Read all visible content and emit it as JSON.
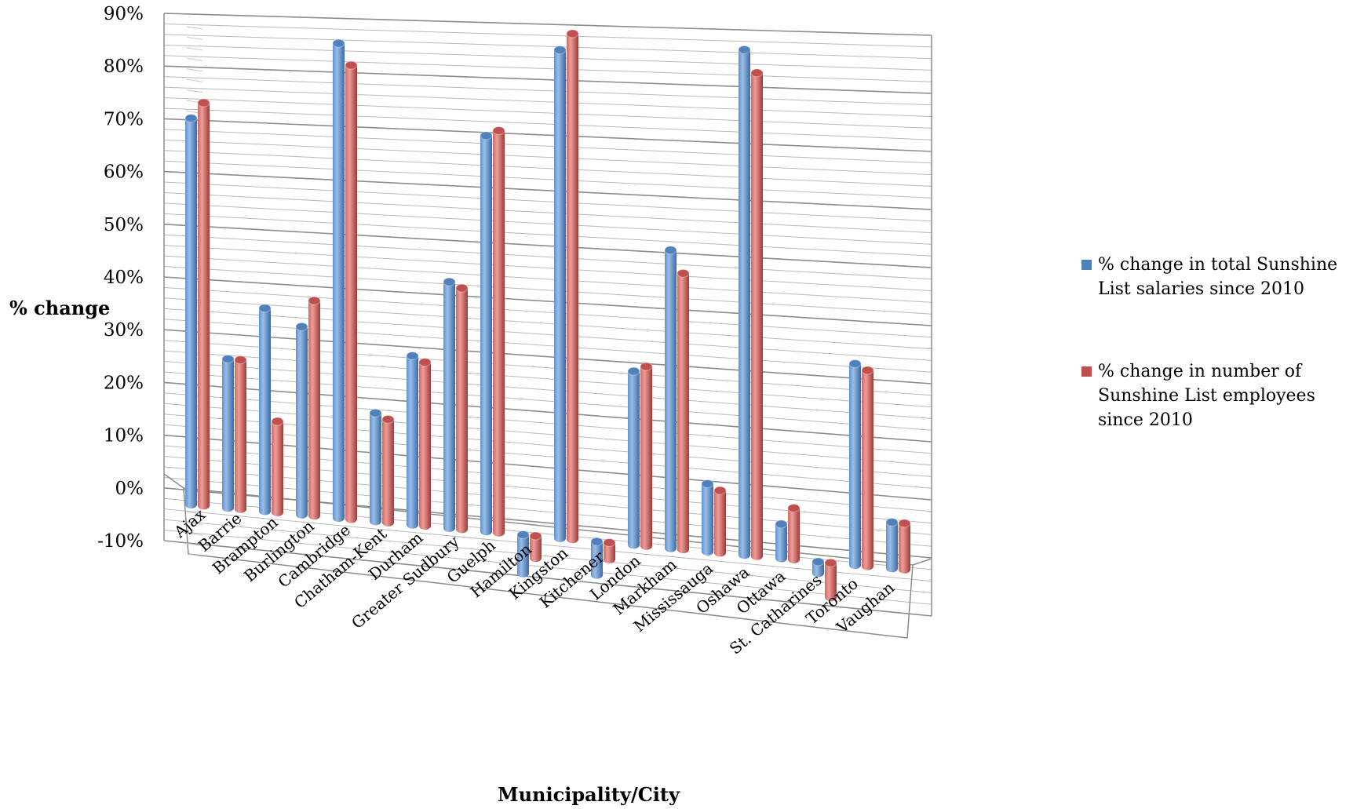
{
  "chart_data": {
    "type": "bar",
    "title": "",
    "xlabel": "Municipality/City",
    "ylabel": "% change",
    "ylim": [
      -10,
      90
    ],
    "y_ticks": [
      "-10%",
      "0%",
      "10%",
      "20%",
      "30%",
      "40%",
      "50%",
      "60%",
      "70%",
      "80%",
      "90%"
    ],
    "grid": true,
    "legend_position": "right",
    "categories": [
      "Ajax",
      "Barrie",
      "Brampton",
      "Burlington",
      "Cambridge",
      "Chatham-Kent",
      "Durham",
      "Greater Sudbury",
      "Guelph",
      "Hamilton",
      "Kingston",
      "Kitchener",
      "London",
      "Markham",
      "Mississauga",
      "Oshawa",
      "Ottawa",
      "St. Catharines",
      "Toronto",
      "Vaughan"
    ],
    "series": [
      {
        "name": "% change in total Sunshine List salaries since 2010",
        "color": "#4f81bd",
        "values": [
          73,
          28,
          38,
          35,
          88,
          20,
          31,
          45,
          72,
          -7,
          88,
          -6,
          31,
          53,
          12,
          89,
          6,
          -2,
          35,
          8
        ]
      },
      {
        "name": "% change in number of Sunshine List employees since 2010",
        "color": "#c0504d",
        "values": [
          76,
          28,
          17,
          40,
          84,
          19,
          30,
          44,
          73,
          -4,
          91,
          -3,
          32,
          49,
          11,
          85,
          9,
          -6,
          34,
          8
        ]
      }
    ]
  }
}
